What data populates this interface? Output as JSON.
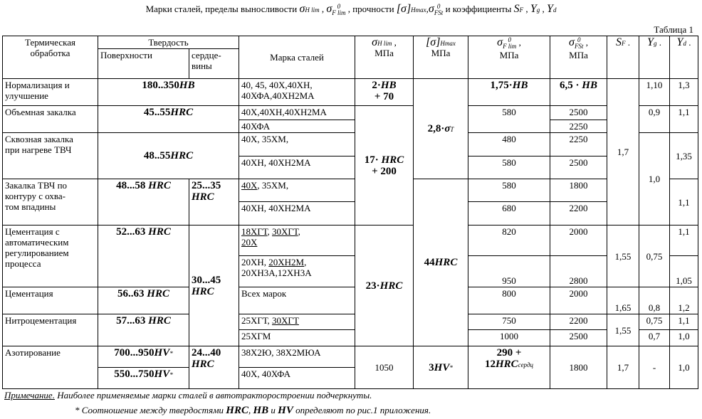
{
  "title": [
    "Марки сталей, пределы выносливости ",
    {
      "t": "σ",
      "sub": "H lim"
    },
    " , ",
    {
      "t": "σ",
      "sup": "0",
      "sub": "F lim"
    },
    " , прочности ",
    {
      "t": "[σ]",
      "sub": "Hmax"
    },
    ",",
    {
      "t": "σ",
      "sup": "0",
      "sub": "FSt"
    },
    " и коэффициенты ",
    {
      "t": "S",
      "sub": "F"
    },
    " , ",
    {
      "t": "Y",
      "sub": "g"
    },
    " , ",
    {
      "t": "Y",
      "sub": "d"
    }
  ],
  "table_label": "Таблица 1",
  "table": {
    "header": {
      "treatment": "Термическая\nобработка",
      "hardness": "Твердость",
      "surface": "Поверхности",
      "core": "сердце-\nвины",
      "steel": "Марка сталей",
      "sigma_hlim": [
        {
          "t": "σ",
          "sub": "H lim"
        },
        " ,\nМПа"
      ],
      "sigma_hmax": [
        {
          "t": "[σ]",
          "sub": "Hmax"
        },
        "\nМПа"
      ],
      "sigma_flim": [
        {
          "t": "σ",
          "sup": "0",
          "sub": "F lim"
        },
        " ,\nМПа"
      ],
      "sigma_fst": [
        {
          "t": "σ",
          "sup": "0",
          "sub": "FSt"
        },
        " ,\nМПа"
      ],
      "sf": [
        {
          "t": "S",
          "sub": "F"
        },
        " ."
      ],
      "yg": [
        {
          "t": "Y",
          "sub": "g"
        },
        " ."
      ],
      "yd": [
        {
          "t": "Y",
          "sub": "d"
        },
        " ."
      ]
    },
    "rows": [
      [
        "Нормализация и\nулучшение",
        [
          {
            "t": "180..350",
            "b": true
          },
          {
            "t": "HB",
            "b": true,
            "i": true
          }
        ],
        "40, 45, 40Х,40ХН,\n40ХФА,40ХН2МА",
        [
          {
            "t": "2·",
            "b": true
          },
          {
            "t": "HB",
            "b": true,
            "i": true
          },
          {
            "t": "\n+ 70",
            "b": true
          }
        ],
        [
          {
            "t": "2,8·",
            "b": true
          },
          {
            "t": "σ",
            "b": true,
            "i": true,
            "sub": "T"
          }
        ],
        [
          {
            "t": "1,75·",
            "b": true
          },
          {
            "t": "HB",
            "b": true,
            "i": true
          }
        ],
        [
          {
            "t": "6,5 · ",
            "b": true
          },
          {
            "t": "HB",
            "b": true,
            "i": true
          }
        ],
        "1,7",
        "1,10",
        "1,3"
      ],
      [
        "Объемная закалка",
        [
          {
            "t": "45..55",
            "b": true
          },
          {
            "t": "HRC",
            "b": true,
            "i": true
          }
        ],
        "40Х,40ХН,40ХН2МА",
        [
          {
            "t": "17· ",
            "b": true
          },
          {
            "t": "HRC",
            "b": true,
            "i": true
          },
          {
            "t": "\n+ 200",
            "b": true
          }
        ],
        "580",
        "2500",
        "0,9",
        "1,1"
      ],
      [
        "40ХФА",
        "2250"
      ],
      [
        "Сквозная закалка\nпри нагреве ТВЧ",
        [
          {
            "t": "48..55",
            "b": true
          },
          {
            "t": "HRC",
            "b": true,
            "i": true
          }
        ],
        "40Х, 35ХМ,",
        "480",
        "2250",
        "1,0",
        "1,35"
      ],
      [
        "40ХН, 40ХН2МА",
        "580",
        "2500"
      ],
      [
        "Закалка ТВЧ по\nконтуру с охва-\nтом впадины",
        [
          {
            "t": "48...58 ",
            "b": true
          },
          {
            "t": "HRC",
            "b": true,
            "i": true
          }
        ],
        [
          {
            "t": "25...35\n",
            "b": true
          },
          {
            "t": "HRC",
            "b": true,
            "i": true
          }
        ],
        [
          {
            "t": "40Х",
            "u": true
          },
          ", 35ХМ,"
        ],
        [
          {
            "t": "44",
            "b": true
          },
          {
            "t": "HRC",
            "b": true,
            "i": true
          }
        ],
        "580",
        "1800",
        "1,1"
      ],
      [
        "40ХН, 40ХН2МА",
        "680",
        "2200"
      ],
      [
        "Цементация с\nавтоматическим\nрегулированием\nпроцесса",
        [
          {
            "t": "52...63 ",
            "b": true
          },
          {
            "t": "HRC",
            "b": true,
            "i": true
          }
        ],
        [
          {
            "t": "30...45\n",
            "b": true
          },
          {
            "t": "HRC",
            "b": true,
            "i": true
          }
        ],
        [
          {
            "t": "18ХГТ",
            "u": true
          },
          ", ",
          {
            "t": "30ХГТ",
            "u": true
          },
          ",\n",
          {
            "t": "20Х",
            "u": true
          }
        ],
        [
          {
            "t": "23·",
            "b": true
          },
          {
            "t": "HRC",
            "b": true,
            "i": true
          }
        ],
        "820",
        "2000",
        "1,55",
        "0,75",
        "1,1"
      ],
      [
        [
          "20ХН, ",
          {
            "t": "20ХН2М",
            "u": true
          },
          ",\n20ХН3А,12ХН3А"
        ],
        "950",
        "2800",
        "1,05"
      ],
      [
        "Цементация",
        [
          {
            "t": "56..63 ",
            "b": true
          },
          {
            "t": "HRC",
            "b": true,
            "i": true
          }
        ],
        "Всех марок",
        "800",
        "2000",
        "1,65",
        "0,8",
        "1,2"
      ],
      [
        "Нитроцементация",
        [
          {
            "t": "57...63 ",
            "b": true
          },
          {
            "t": "HRC",
            "b": true,
            "i": true
          }
        ],
        [
          "25ХГТ, ",
          {
            "t": "30ХГТ",
            "u": true
          }
        ],
        "750",
        "2200",
        "1,55",
        "0,75",
        "1,1"
      ],
      [
        "25ХГМ",
        "1000",
        "2500",
        "0,7",
        "1,0"
      ],
      [
        "Азотирование",
        [
          {
            "t": "700...950",
            "b": true
          },
          {
            "t": "HV",
            "b": true,
            "i": true,
            "sup": "*"
          }
        ],
        [
          {
            "t": "24...40\n",
            "b": true
          },
          {
            "t": "HRC",
            "b": true,
            "i": true
          }
        ],
        "38Х2Ю, 38Х2МЮА",
        "1050",
        [
          {
            "t": "3",
            "b": true
          },
          {
            "t": "HV",
            "b": true,
            "i": true,
            "sup": "*"
          }
        ],
        [
          {
            "t": "290 +\n12",
            "b": true
          },
          {
            "t": "HRC",
            "b": true,
            "i": true,
            "sup": "сердц"
          }
        ],
        "1800",
        "1,7",
        "-",
        "1,0"
      ],
      [
        [
          {
            "t": "550...750",
            "b": true
          },
          {
            "t": "HV",
            "b": true,
            "i": true,
            "sup": "*"
          }
        ],
        "40Х, 40ХФА"
      ]
    ]
  },
  "notes": [
    [
      {
        "t": "Примечание.",
        "u": true
      },
      " Наиболее применяемые марки сталей в автотракторостроении подчеркнуты."
    ],
    [
      "* Соотношение между твердостями ",
      {
        "t": "HRC",
        "b": true
      },
      ", ",
      {
        "t": "HB",
        "b": true
      },
      "  и  ",
      {
        "t": "HV",
        "b": true
      },
      "  определяют по рис.1 приложения."
    ]
  ]
}
